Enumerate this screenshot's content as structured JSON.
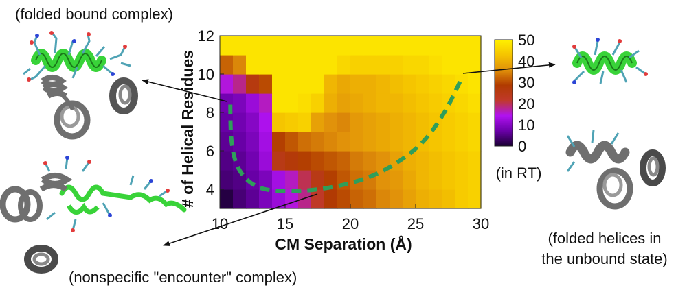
{
  "chart_data": {
    "type": "heatmap",
    "title": "",
    "xlabel": "CM Separation (Å)",
    "ylabel": "# of Helical Residues",
    "xlim": [
      10,
      30
    ],
    "ylim": [
      3,
      12
    ],
    "x_ticks": [
      "10",
      "15",
      "20",
      "25",
      "30"
    ],
    "y_ticks": [
      "4",
      "6",
      "8",
      "10",
      "12"
    ],
    "colorbar": {
      "ticks": [
        "0",
        "10",
        "20",
        "30",
        "40",
        "50"
      ],
      "range": [
        0,
        50
      ],
      "unit_label": "(in RT)",
      "stops": [
        "#1a0033",
        "#6a00a8",
        "#b012f0",
        "#c0392b",
        "#b03a00",
        "#e0900a",
        "#f5c400",
        "#fff000"
      ]
    },
    "x_centers": [
      10.5,
      11.5,
      12.5,
      13.5,
      14.5,
      15.5,
      16.5,
      17.5,
      18.5,
      19.5,
      20.5,
      21.5,
      22.5,
      23.5,
      24.5,
      25.5,
      26.5,
      27.5,
      28.5,
      29.5
    ],
    "y_centers": [
      3.5,
      4.5,
      5.5,
      6.5,
      7.5,
      8.5,
      9.5,
      10.5,
      11.5
    ],
    "z": [
      [
        1,
        4,
        6,
        9,
        12,
        15,
        18,
        22,
        28,
        30,
        32,
        33,
        35,
        36,
        38,
        40,
        41,
        42,
        44,
        45
      ],
      [
        4,
        5,
        7,
        9,
        13,
        16,
        20,
        25,
        29,
        31,
        33,
        34,
        36,
        37,
        39,
        41,
        42,
        43,
        44,
        45
      ],
      [
        5,
        6,
        8,
        12,
        25,
        27,
        29,
        30,
        31,
        32,
        34,
        35,
        36,
        38,
        40,
        41,
        42,
        43,
        44,
        45
      ],
      [
        6,
        7,
        9,
        13,
        29,
        31,
        33,
        34,
        35,
        36,
        37,
        38,
        39,
        40,
        41,
        42,
        43,
        44,
        45,
        46
      ],
      [
        7,
        8,
        10,
        14,
        43,
        44,
        45,
        38,
        36,
        35,
        37,
        38,
        39,
        40,
        41,
        42,
        43,
        44,
        45,
        46
      ],
      [
        8,
        9,
        12,
        16,
        48,
        48,
        47,
        45,
        40,
        38,
        39,
        40,
        41,
        41,
        42,
        43,
        44,
        45,
        46,
        47
      ],
      [
        15,
        18,
        26,
        30,
        48,
        48,
        48,
        48,
        41,
        39,
        40,
        40,
        41,
        42,
        43,
        44,
        45,
        46,
        47,
        48
      ],
      [
        32,
        35,
        48,
        48,
        48,
        48,
        48,
        48,
        48,
        46,
        45,
        45,
        45,
        45,
        46,
        46,
        47,
        48,
        48,
        48
      ],
      [
        48,
        48,
        48,
        48,
        48,
        48,
        48,
        48,
        48,
        48,
        48,
        48,
        48,
        48,
        48,
        48,
        48,
        48,
        48,
        48
      ]
    ],
    "path_label": "minimum free energy pathway (dashed)",
    "path_x": [
      28.4,
      27.2,
      25.6,
      23.6,
      21.3,
      18.5,
      15.5,
      13.0,
      11.5,
      10.9,
      10.8
    ],
    "path_y": [
      9.6,
      8.0,
      6.5,
      5.4,
      4.6,
      4.1,
      3.9,
      4.1,
      5.0,
      6.5,
      8.7
    ],
    "annotations": [
      "(folded bound complex)",
      "(nonspecific \"encounter\" complex)",
      "(folded helices in",
      "the unbound state)"
    ]
  },
  "colors": {
    "path": "#2f9e5a",
    "helix_green": "#39d339",
    "helix_gray": "#6f6f6f",
    "sidechain": "#4fa3b5"
  }
}
